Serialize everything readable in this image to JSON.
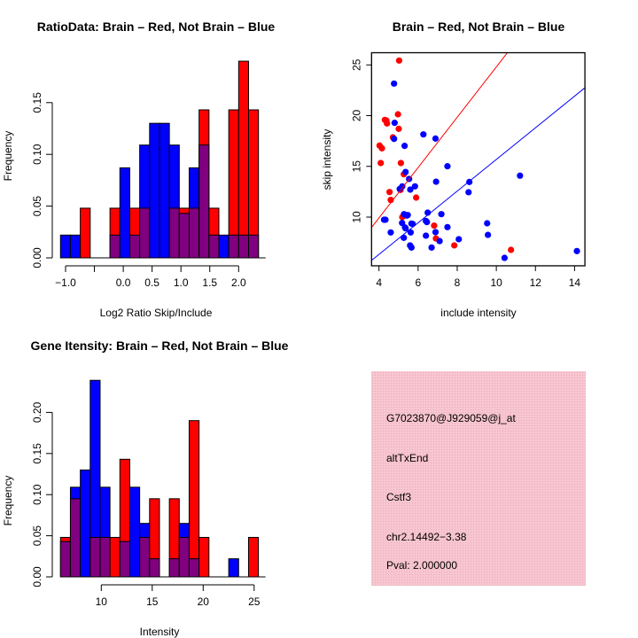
{
  "colors": {
    "brain": "#FF0000",
    "not_brain": "#0000FF",
    "overlap": "#800080",
    "box_bg": "#F4C2CC",
    "pval": "#8B0000"
  },
  "chart_data": [
    {
      "type": "bar",
      "title": "RatioData: Brain – Red, Not Brain – Blue",
      "xlabel": "Log2 Ratio Skip/Include",
      "ylabel": "Frequency",
      "xticks": [
        -1.0,
        -0.5,
        0.0,
        0.5,
        1.0,
        1.5,
        2.0
      ],
      "xtick_labels": [
        "−1.0",
        "",
        "0.0",
        "0.5",
        "1.0",
        "1.5",
        "2.0"
      ],
      "yticks": [
        0,
        0.05,
        0.1,
        0.15
      ],
      "ytick_labels": [
        "0.00",
        "0.05",
        "0.10",
        "0.15"
      ],
      "ylim": [
        0,
        0.19
      ],
      "bin_start": -1.088,
      "bin_width": 0.1716,
      "series": [
        {
          "name": "Brain (red)",
          "values": [
            0,
            0,
            0.048,
            0,
            0,
            0.048,
            0,
            0.048,
            0.048,
            0,
            0,
            0.048,
            0.048,
            0.048,
            0.143,
            0.048,
            0,
            0.143,
            0.19,
            0.143
          ]
        },
        {
          "name": "Not Brain (blue)",
          "values": [
            0.022,
            0.022,
            0,
            0,
            0,
            0.022,
            0.087,
            0.022,
            0.109,
            0.13,
            0.13,
            0.109,
            0.043,
            0.087,
            0.109,
            0.022,
            0.022,
            0.022,
            0.022,
            0.022
          ]
        }
      ]
    },
    {
      "type": "scatter",
      "title": "Brain – Red, Not Brain – Blue",
      "xlabel": "include intensity",
      "ylabel": "skip intensity",
      "xticks": [
        4,
        6,
        8,
        10,
        12,
        14
      ],
      "xtick_labels": [
        "4",
        "6",
        "8",
        "10",
        "12",
        "14"
      ],
      "yticks": [
        10,
        15,
        20,
        25
      ],
      "ytick_labels": [
        "10",
        "15",
        "20",
        "25"
      ],
      "xlim": [
        3.62,
        14.53
      ],
      "ylim": [
        5.2,
        26.2
      ],
      "lines": [
        {
          "name": "Brain fit",
          "slope": 2.48,
          "intercept": 0.0
        },
        {
          "name": "Not Brain fit",
          "slope": 1.56,
          "intercept": 0.08
        }
      ],
      "series": [
        {
          "name": "Brain (red)",
          "points": [
            [
              5.03,
              25.43
            ],
            [
              4.97,
              20.13
            ],
            [
              4.3,
              19.58
            ],
            [
              4.38,
              19.52
            ],
            [
              4.41,
              19.23
            ],
            [
              5.01,
              18.7
            ],
            [
              4.71,
              17.86
            ],
            [
              4.03,
              17.05
            ],
            [
              4.15,
              16.78
            ],
            [
              4.09,
              15.33
            ],
            [
              5.12,
              15.33
            ],
            [
              5.27,
              14.22
            ],
            [
              5.1,
              12.68
            ],
            [
              4.54,
              12.47
            ],
            [
              4.6,
              11.69
            ],
            [
              5.9,
              11.92
            ],
            [
              5.19,
              10.0
            ],
            [
              6.82,
              9.16
            ],
            [
              6.91,
              7.9
            ],
            [
              7.85,
              7.21
            ],
            [
              10.75,
              6.77
            ]
          ]
        },
        {
          "name": "Not Brain (blue)",
          "points": [
            [
              4.77,
              23.16
            ],
            [
              4.8,
              19.29
            ],
            [
              4.77,
              17.71
            ],
            [
              5.31,
              17.02
            ],
            [
              6.27,
              18.15
            ],
            [
              6.89,
              17.74
            ],
            [
              5.36,
              14.45
            ],
            [
              5.54,
              13.76
            ],
            [
              7.5,
              15.01
            ],
            [
              6.92,
              13.49
            ],
            [
              8.62,
              13.46
            ],
            [
              8.58,
              12.45
            ],
            [
              11.21,
              14.08
            ],
            [
              5.84,
              13.03
            ],
            [
              5.6,
              12.71
            ],
            [
              5.06,
              12.77
            ],
            [
              5.19,
              13.03
            ],
            [
              4.26,
              9.74
            ],
            [
              4.33,
              9.74
            ],
            [
              5.28,
              10.29
            ],
            [
              5.42,
              10.15
            ],
            [
              5.47,
              10.2
            ],
            [
              6.49,
              10.44
            ],
            [
              7.19,
              10.29
            ],
            [
              5.18,
              9.42
            ],
            [
              5.33,
              8.98
            ],
            [
              5.36,
              8.89
            ],
            [
              5.66,
              9.36
            ],
            [
              5.72,
              9.33
            ],
            [
              6.4,
              9.62
            ],
            [
              6.45,
              9.51
            ],
            [
              7.5,
              9.01
            ],
            [
              4.6,
              8.49
            ],
            [
              5.62,
              8.49
            ],
            [
              6.89,
              8.52
            ],
            [
              6.4,
              8.17
            ],
            [
              5.27,
              7.96
            ],
            [
              8.08,
              7.82
            ],
            [
              5.59,
              7.21
            ],
            [
              5.66,
              7.0
            ],
            [
              6.69,
              7.0
            ],
            [
              7.1,
              7.64
            ],
            [
              9.53,
              9.39
            ],
            [
              9.57,
              8.25
            ],
            [
              10.42,
              5.98
            ],
            [
              14.12,
              6.65
            ]
          ]
        }
      ]
    },
    {
      "type": "bar",
      "title": "Gene Itensity: Brain – Red, Not Brain – Blue",
      "xlabel": "Intensity",
      "ylabel": "Frequency",
      "xticks": [
        10,
        15,
        20,
        25
      ],
      "xtick_labels": [
        "10",
        "15",
        "20",
        "25"
      ],
      "yticks": [
        0,
        0.05,
        0.1,
        0.15,
        0.2
      ],
      "ytick_labels": [
        "0.00",
        "0.05",
        "0.10",
        "0.15",
        "0.20"
      ],
      "ylim": [
        0,
        0.24
      ],
      "bin_start": 6.0,
      "bin_width": 0.971,
      "series": [
        {
          "name": "Brain (red)",
          "values": [
            0.048,
            0.095,
            0,
            0.048,
            0.048,
            0.048,
            0.143,
            0,
            0.048,
            0.095,
            0,
            0.095,
            0.048,
            0.19,
            0.048,
            0,
            0,
            0,
            0,
            0.048
          ]
        },
        {
          "name": "Not Brain (blue)",
          "values": [
            0.043,
            0.109,
            0.13,
            0.239,
            0.109,
            0,
            0.043,
            0.109,
            0.065,
            0.022,
            0,
            0.022,
            0.065,
            0.022,
            0,
            0,
            0,
            0.022,
            0,
            0
          ]
        }
      ]
    }
  ],
  "info_box": {
    "probe_id": "G7023870@J929059@j_at",
    "event_type": "altTxEnd",
    "gene": "Cstf3",
    "location": "chr2.14492−3.38",
    "pval": "Pval: 2.000000"
  }
}
